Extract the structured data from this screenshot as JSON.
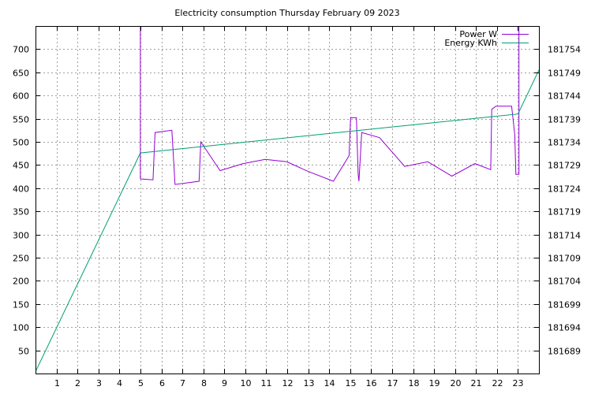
{
  "chart_data": {
    "type": "line",
    "title": "Electricity consumption Thursday February 09 2023",
    "xlabel": "",
    "ylabel": "",
    "y2label": "",
    "xlim": [
      0,
      24
    ],
    "ylim": [
      0,
      750
    ],
    "y2lim": [
      181684,
      181759
    ],
    "x_ticks": [
      1,
      2,
      3,
      4,
      5,
      6,
      7,
      8,
      9,
      10,
      11,
      12,
      13,
      14,
      15,
      16,
      17,
      18,
      19,
      20,
      21,
      22,
      23
    ],
    "y_ticks": [
      50,
      100,
      150,
      200,
      250,
      300,
      350,
      400,
      450,
      500,
      550,
      600,
      650,
      700
    ],
    "y2_ticks": [
      181689,
      181694,
      181699,
      181704,
      181709,
      181714,
      181719,
      181724,
      181729,
      181734,
      181739,
      181744,
      181749,
      181754
    ],
    "grid": true,
    "legend_position": "top-right",
    "colors": {
      "power": "#9400d3",
      "energy": "#009e73"
    },
    "series": [
      {
        "name": "Power W",
        "axis": "y",
        "step": true,
        "x": [
          5.0,
          5.0,
          5.0,
          5.6,
          5.6,
          5.7,
          5.7,
          6.5,
          6.5,
          6.65,
          6.65,
          7.8,
          7.8,
          7.88,
          7.88,
          8.8,
          8.8,
          9.9,
          9.9,
          10.95,
          10.95,
          11.98,
          11.98,
          13.0,
          13.0,
          14.2,
          14.2,
          14.95,
          14.95,
          15.02,
          15.02,
          15.3,
          15.3,
          15.38,
          15.38,
          15.42,
          15.42,
          15.55,
          15.55,
          16.4,
          16.4,
          17.6,
          17.6,
          18.7,
          18.7,
          19.85,
          19.85,
          20.95,
          20.95,
          21.7,
          21.7,
          21.75,
          21.75,
          21.95,
          21.95,
          22.7,
          22.7,
          22.85,
          22.85,
          22.9,
          22.9,
          23.05,
          23.05
        ],
        "y": [
          750,
          420,
          420,
          418,
          418,
          520,
          520,
          525,
          525,
          408,
          408,
          415,
          415,
          500,
          500,
          438,
          438,
          453,
          453,
          462,
          462,
          457,
          457,
          436,
          436,
          415,
          415,
          470,
          470,
          552,
          552,
          552,
          552,
          430,
          430,
          415,
          415,
          520,
          520,
          509,
          509,
          447,
          447,
          457,
          457,
          426,
          426,
          453,
          453,
          440,
          440,
          570,
          570,
          577,
          577,
          577,
          577,
          515,
          515,
          430,
          430,
          430,
          750
        ]
      },
      {
        "name": "Energy KWh",
        "axis": "y2",
        "step": false,
        "x": [
          0.0,
          5.0,
          23.0,
          24.0
        ],
        "y": [
          181684.4,
          181731.6,
          181740.0,
          181749.5
        ]
      }
    ]
  }
}
